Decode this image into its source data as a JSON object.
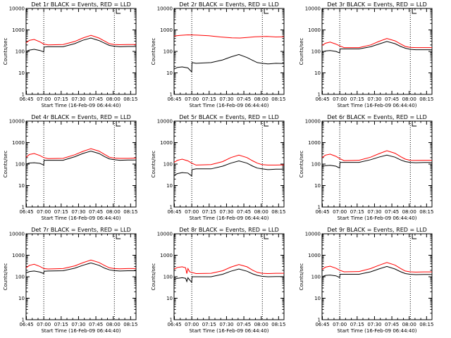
{
  "figure": {
    "background": "#ffffff",
    "events_color": "#000000",
    "lld_color": "#ff0000"
  },
  "chart_data": [
    {
      "type": "line",
      "title": "Det 1r BLACK = Events, RED = LLD",
      "xlabel": "Start Time (16-Feb-09 06:44:40)",
      "ylabel": "Counts/sec",
      "x_tick_labels": [
        "06:45",
        "07:00",
        "07:15",
        "07:30",
        "07:45",
        "08:00",
        "08:15"
      ],
      "y_tick_labels": [
        "1",
        "10",
        "100",
        "1000",
        "10000"
      ],
      "xlim_minutes": [
        0,
        95
      ],
      "ylim": [
        1,
        10000
      ],
      "yscale": "log",
      "dotted_vlines_minutes": [
        15.3,
        76.3
      ],
      "bracket_mark_minutes": 78,
      "series": [
        {
          "name": "Events",
          "color": "#000000",
          "x": [
            0,
            3,
            7,
            12,
            15.3,
            15.5,
            19,
            32,
            42,
            49,
            56,
            63,
            68,
            72,
            76,
            81,
            88,
            95
          ],
          "values": [
            100,
            115,
            125,
            110,
            95,
            160,
            165,
            165,
            230,
            330,
            420,
            320,
            240,
            190,
            175,
            165,
            170,
            170
          ]
        },
        {
          "name": "LLD",
          "color": "#ff0000",
          "x": [
            0,
            3,
            7,
            12,
            15.3,
            19,
            32,
            42,
            49,
            56,
            63,
            68,
            72,
            76,
            81,
            88,
            95
          ],
          "values": [
            250,
            330,
            360,
            280,
            220,
            200,
            210,
            290,
            420,
            560,
            420,
            300,
            230,
            210,
            205,
            210,
            210
          ]
        }
      ]
    },
    {
      "type": "line",
      "title": "Det 2r BLACK = Events, RED = LLD",
      "xlabel": "Start Time (16-Feb-09 06:44:40)",
      "ylabel": "Counts/sec",
      "x_tick_labels": [
        "06:45",
        "07:00",
        "07:15",
        "07:30",
        "07:45",
        "08:00",
        "08:15"
      ],
      "y_tick_labels": [
        "1",
        "10",
        "100",
        "1000",
        "10000"
      ],
      "xlim_minutes": [
        0,
        95
      ],
      "ylim": [
        1,
        10000
      ],
      "yscale": "log",
      "dotted_vlines_minutes": [
        15.3,
        76.3
      ],
      "bracket_mark_minutes": 78,
      "series": [
        {
          "name": "Events",
          "color": "#000000",
          "x": [
            0,
            3,
            7,
            12,
            15.3,
            15.5,
            19,
            32,
            42,
            49,
            56,
            63,
            68,
            72,
            76,
            81,
            88,
            95
          ],
          "values": [
            15,
            18,
            19,
            17,
            11,
            30,
            28,
            30,
            40,
            55,
            72,
            52,
            38,
            30,
            28,
            26,
            28,
            27
          ]
        },
        {
          "name": "LLD",
          "color": "#ff0000",
          "x": [
            0,
            5,
            12,
            20,
            30,
            40,
            50,
            57,
            62,
            70,
            80,
            88,
            95
          ],
          "values": [
            520,
            560,
            590,
            570,
            540,
            470,
            430,
            420,
            440,
            480,
            500,
            470,
            480
          ]
        }
      ]
    },
    {
      "type": "line",
      "title": "Det 3r BLACK = Events, RED = LLD",
      "xlabel": "Start Time (16-Feb-09 06:44:40)",
      "ylabel": "Counts/sec",
      "x_tick_labels": [
        "06:45",
        "07:00",
        "07:15",
        "07:30",
        "07:45",
        "08:00",
        "08:15"
      ],
      "y_tick_labels": [
        "1",
        "10",
        "100",
        "1000",
        "10000"
      ],
      "xlim_minutes": [
        0,
        95
      ],
      "ylim": [
        1,
        10000
      ],
      "yscale": "log",
      "dotted_vlines_minutes": [
        15.3,
        76.3
      ],
      "bracket_mark_minutes": 78,
      "series": [
        {
          "name": "Events",
          "color": "#000000",
          "x": [
            0,
            3,
            7,
            12,
            15.3,
            15.5,
            19,
            32,
            42,
            49,
            56,
            63,
            68,
            72,
            76,
            81,
            88,
            95
          ],
          "values": [
            95,
            105,
            110,
            100,
            85,
            130,
            130,
            130,
            165,
            220,
            290,
            230,
            170,
            140,
            125,
            120,
            120,
            120
          ]
        },
        {
          "name": "LLD",
          "color": "#ff0000",
          "x": [
            0,
            3,
            7,
            12,
            15.3,
            19,
            32,
            42,
            49,
            56,
            63,
            68,
            72,
            76,
            81,
            88,
            95
          ],
          "values": [
            190,
            240,
            270,
            220,
            180,
            150,
            150,
            200,
            290,
            400,
            310,
            220,
            170,
            155,
            150,
            150,
            150
          ]
        }
      ]
    },
    {
      "type": "line",
      "title": "Det 4r BLACK = Events, RED = LLD",
      "xlabel": "Start Time (16-Feb-09 06:44:40)",
      "ylabel": "Counts/sec",
      "x_tick_labels": [
        "06:45",
        "07:00",
        "07:15",
        "07:30",
        "07:45",
        "08:00",
        "08:15"
      ],
      "y_tick_labels": [
        "1",
        "10",
        "100",
        "1000",
        "10000"
      ],
      "xlim_minutes": [
        0,
        95
      ],
      "ylim": [
        1,
        10000
      ],
      "yscale": "log",
      "dotted_vlines_minutes": [
        15.3,
        76.3
      ],
      "bracket_mark_minutes": 78,
      "series": [
        {
          "name": "Events",
          "color": "#000000",
          "x": [
            0,
            3,
            7,
            12,
            15.3,
            15.5,
            19,
            32,
            42,
            49,
            56,
            63,
            68,
            72,
            76,
            81,
            88,
            95
          ],
          "values": [
            100,
            112,
            115,
            108,
            90,
            150,
            150,
            150,
            220,
            310,
            400,
            310,
            220,
            175,
            160,
            150,
            155,
            155
          ]
        },
        {
          "name": "LLD",
          "color": "#ff0000",
          "x": [
            0,
            3,
            7,
            12,
            15.3,
            19,
            32,
            42,
            49,
            56,
            63,
            68,
            72,
            76,
            81,
            88,
            95
          ],
          "values": [
            210,
            280,
            310,
            250,
            200,
            180,
            185,
            270,
            390,
            520,
            400,
            280,
            210,
            190,
            185,
            185,
            190
          ]
        }
      ]
    },
    {
      "type": "line",
      "title": "Det 5r BLACK = Events, RED = LLD",
      "xlabel": "Start Time (16-Feb-09 06:44:40)",
      "ylabel": "Counts/sec",
      "x_tick_labels": [
        "06:45",
        "07:00",
        "07:15",
        "07:30",
        "07:45",
        "08:00",
        "08:15"
      ],
      "y_tick_labels": [
        "1",
        "10",
        "100",
        "1000",
        "10000"
      ],
      "xlim_minutes": [
        0,
        95
      ],
      "ylim": [
        1,
        10000
      ],
      "yscale": "log",
      "dotted_vlines_minutes": [
        15.3,
        76.3
      ],
      "bracket_mark_minutes": 78,
      "series": [
        {
          "name": "Events",
          "color": "#000000",
          "x": [
            0,
            3,
            7,
            12,
            15.3,
            15.5,
            19,
            32,
            42,
            49,
            56,
            63,
            68,
            72,
            76,
            81,
            88,
            95
          ],
          "values": [
            30,
            36,
            40,
            38,
            28,
            55,
            60,
            60,
            80,
            110,
            140,
            110,
            80,
            65,
            60,
            55,
            58,
            58
          ]
        },
        {
          "name": "LLD",
          "color": "#ff0000",
          "x": [
            0,
            3,
            7,
            12,
            15.3,
            19,
            32,
            42,
            49,
            56,
            63,
            68,
            72,
            76,
            81,
            88,
            95
          ],
          "values": [
            120,
            150,
            170,
            140,
            110,
            90,
            95,
            130,
            200,
            260,
            200,
            140,
            110,
            95,
            90,
            90,
            92
          ]
        }
      ]
    },
    {
      "type": "line",
      "title": "Det 6r BLACK = Events, RED = LLD",
      "xlabel": "Start Time (16-Feb-09 06:44:40)",
      "ylabel": "Counts/sec",
      "x_tick_labels": [
        "06:45",
        "07:00",
        "07:15",
        "07:30",
        "07:45",
        "08:00",
        "08:15"
      ],
      "y_tick_labels": [
        "1",
        "10",
        "100",
        "1000",
        "10000"
      ],
      "xlim_minutes": [
        0,
        95
      ],
      "ylim": [
        1,
        10000
      ],
      "yscale": "log",
      "dotted_vlines_minutes": [
        15.3,
        76.3
      ],
      "bracket_mark_minutes": 78,
      "series": [
        {
          "name": "Events",
          "color": "#000000",
          "x": [
            0,
            3,
            7,
            12,
            15.3,
            15.5,
            19,
            32,
            42,
            49,
            56,
            63,
            68,
            72,
            76,
            81,
            88,
            95
          ],
          "values": [
            75,
            85,
            88,
            80,
            65,
            120,
            120,
            120,
            160,
            210,
            260,
            210,
            155,
            130,
            120,
            115,
            118,
            118
          ]
        },
        {
          "name": "LLD",
          "color": "#ff0000",
          "x": [
            0,
            3,
            7,
            12,
            15.3,
            19,
            32,
            42,
            49,
            56,
            63,
            68,
            72,
            76,
            81,
            88,
            95
          ],
          "values": [
            200,
            260,
            290,
            230,
            180,
            145,
            150,
            210,
            300,
            420,
            320,
            220,
            170,
            150,
            148,
            150,
            150
          ]
        }
      ]
    },
    {
      "type": "line",
      "title": "Det 7r BLACK = Events, RED = LLD",
      "xlabel": "Start Time (16-Feb-09 06:44:40)",
      "ylabel": "Counts/sec",
      "x_tick_labels": [
        "06:45",
        "07:00",
        "07:15",
        "07:30",
        "07:45",
        "08:00",
        "08:15"
      ],
      "y_tick_labels": [
        "1",
        "10",
        "100",
        "1000",
        "10000"
      ],
      "xlim_minutes": [
        0,
        95
      ],
      "ylim": [
        1,
        10000
      ],
      "yscale": "log",
      "dotted_vlines_minutes": [
        15.3,
        76.3
      ],
      "bracket_mark_minutes": 78,
      "series": [
        {
          "name": "Events",
          "color": "#000000",
          "x": [
            0,
            3,
            7,
            12,
            15.3,
            15.5,
            19,
            32,
            42,
            49,
            56,
            63,
            68,
            72,
            76,
            81,
            88,
            95
          ],
          "values": [
            150,
            175,
            185,
            165,
            140,
            180,
            185,
            190,
            250,
            340,
            440,
            340,
            250,
            210,
            195,
            185,
            190,
            190
          ]
        },
        {
          "name": "LLD",
          "color": "#ff0000",
          "x": [
            0,
            3,
            7,
            12,
            15.3,
            19,
            32,
            42,
            49,
            56,
            63,
            68,
            72,
            76,
            81,
            88,
            95
          ],
          "values": [
            260,
            340,
            380,
            300,
            240,
            230,
            240,
            320,
            450,
            600,
            460,
            330,
            260,
            240,
            235,
            240,
            240
          ]
        }
      ]
    },
    {
      "type": "line",
      "title": "Det 8r BLACK = Events, RED = LLD",
      "xlabel": "Start Time (16-Feb-09 06:44:40)",
      "ylabel": "Counts/sec",
      "x_tick_labels": [
        "06:45",
        "07:00",
        "07:15",
        "07:30",
        "07:45",
        "08:00",
        "08:15"
      ],
      "y_tick_labels": [
        "1",
        "10",
        "100",
        "1000",
        "10000"
      ],
      "xlim_minutes": [
        0,
        95
      ],
      "ylim": [
        1,
        10000
      ],
      "yscale": "log",
      "dotted_vlines_minutes": [
        15.3,
        76.3
      ],
      "bracket_mark_minutes": 78,
      "series": [
        {
          "name": "Events",
          "color": "#000000",
          "x": [
            0,
            3,
            7,
            10,
            11,
            12,
            13.5,
            15.3,
            15.5,
            19,
            32,
            42,
            49,
            56,
            63,
            68,
            72,
            76,
            81,
            88,
            95
          ],
          "values": [
            75,
            85,
            90,
            85,
            60,
            90,
            70,
            55,
            100,
            100,
            100,
            130,
            180,
            230,
            180,
            135,
            115,
            105,
            100,
            102,
            102
          ]
        },
        {
          "name": "LLD",
          "color": "#ff0000",
          "x": [
            0,
            3,
            7,
            10,
            11,
            12,
            13.5,
            15.3,
            19,
            32,
            42,
            49,
            56,
            63,
            68,
            72,
            76,
            81,
            88,
            95
          ],
          "values": [
            230,
            270,
            290,
            260,
            140,
            240,
            170,
            160,
            140,
            145,
            190,
            280,
            370,
            290,
            200,
            160,
            145,
            140,
            145,
            145
          ]
        }
      ]
    },
    {
      "type": "line",
      "title": "Det 9r BLACK = Events, RED = LLD",
      "xlabel": "Start Time (16-Feb-09 06:44:40)",
      "ylabel": "Counts/sec",
      "x_tick_labels": [
        "06:45",
        "07:00",
        "07:15",
        "07:30",
        "07:45",
        "08:00",
        "08:15"
      ],
      "y_tick_labels": [
        "1",
        "10",
        "100",
        "1000",
        "10000"
      ],
      "xlim_minutes": [
        0,
        95
      ],
      "ylim": [
        1,
        10000
      ],
      "yscale": "log",
      "dotted_vlines_minutes": [
        15.3,
        76.3
      ],
      "bracket_mark_minutes": 78,
      "series": [
        {
          "name": "Events",
          "color": "#000000",
          "x": [
            0,
            3,
            7,
            12,
            15.3,
            15.5,
            19,
            32,
            42,
            49,
            56,
            63,
            68,
            72,
            76,
            81,
            88,
            95
          ],
          "values": [
            100,
            115,
            120,
            110,
            92,
            130,
            130,
            130,
            170,
            230,
            300,
            230,
            170,
            140,
            130,
            125,
            128,
            128
          ]
        },
        {
          "name": "LLD",
          "color": "#ff0000",
          "x": [
            0,
            3,
            7,
            12,
            15.3,
            19,
            32,
            42,
            49,
            56,
            63,
            68,
            72,
            76,
            81,
            88,
            95
          ],
          "values": [
            220,
            280,
            310,
            250,
            200,
            170,
            175,
            240,
            340,
            460,
            350,
            240,
            185,
            170,
            165,
            168,
            168
          ]
        }
      ]
    }
  ]
}
